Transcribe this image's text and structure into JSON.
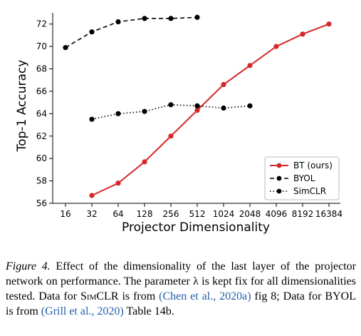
{
  "chart_data": {
    "type": "line",
    "title": "",
    "xlabel": "Projector Dimensionality",
    "ylabel": "Top-1 Accuracy",
    "categories": [
      "16",
      "32",
      "64",
      "128",
      "256",
      "512",
      "1024",
      "2048",
      "4096",
      "8192",
      "16384"
    ],
    "ylim": [
      56,
      73
    ],
    "yticks": [
      56,
      58,
      60,
      62,
      64,
      66,
      68,
      70,
      72
    ],
    "grid": false,
    "legend_position": "bottom-right",
    "series": [
      {
        "name": "BT (ours)",
        "color": "#d62728",
        "style": "solid",
        "values": [
          null,
          56.7,
          57.8,
          59.7,
          62.0,
          64.3,
          66.6,
          68.3,
          70.0,
          71.1,
          72.0
        ]
      },
      {
        "name": "BYOL",
        "color": "#000000",
        "style": "dashed",
        "values": [
          69.9,
          71.3,
          72.2,
          72.5,
          72.5,
          72.6,
          null,
          null,
          null,
          null,
          null
        ]
      },
      {
        "name": "SimCLR",
        "color": "#000000",
        "style": "dotted",
        "values": [
          null,
          63.5,
          64.0,
          64.2,
          64.8,
          64.7,
          64.5,
          64.7,
          null,
          null,
          null
        ]
      }
    ]
  },
  "caption": {
    "label": "Figure 4.",
    "text_1": " Effect of the dimensionality of the last layer of the projector network on performance. The parameter λ is kept fix for all dimensionalities tested. Data for ",
    "simclr": "SimCLR",
    "text_2": " is from ",
    "cite_1": "(Chen et al., 2020a)",
    "text_3": " fig 8; Data for BYOL is from ",
    "cite_2": "(Grill et al., 2020)",
    "text_4": " Table 14b."
  }
}
